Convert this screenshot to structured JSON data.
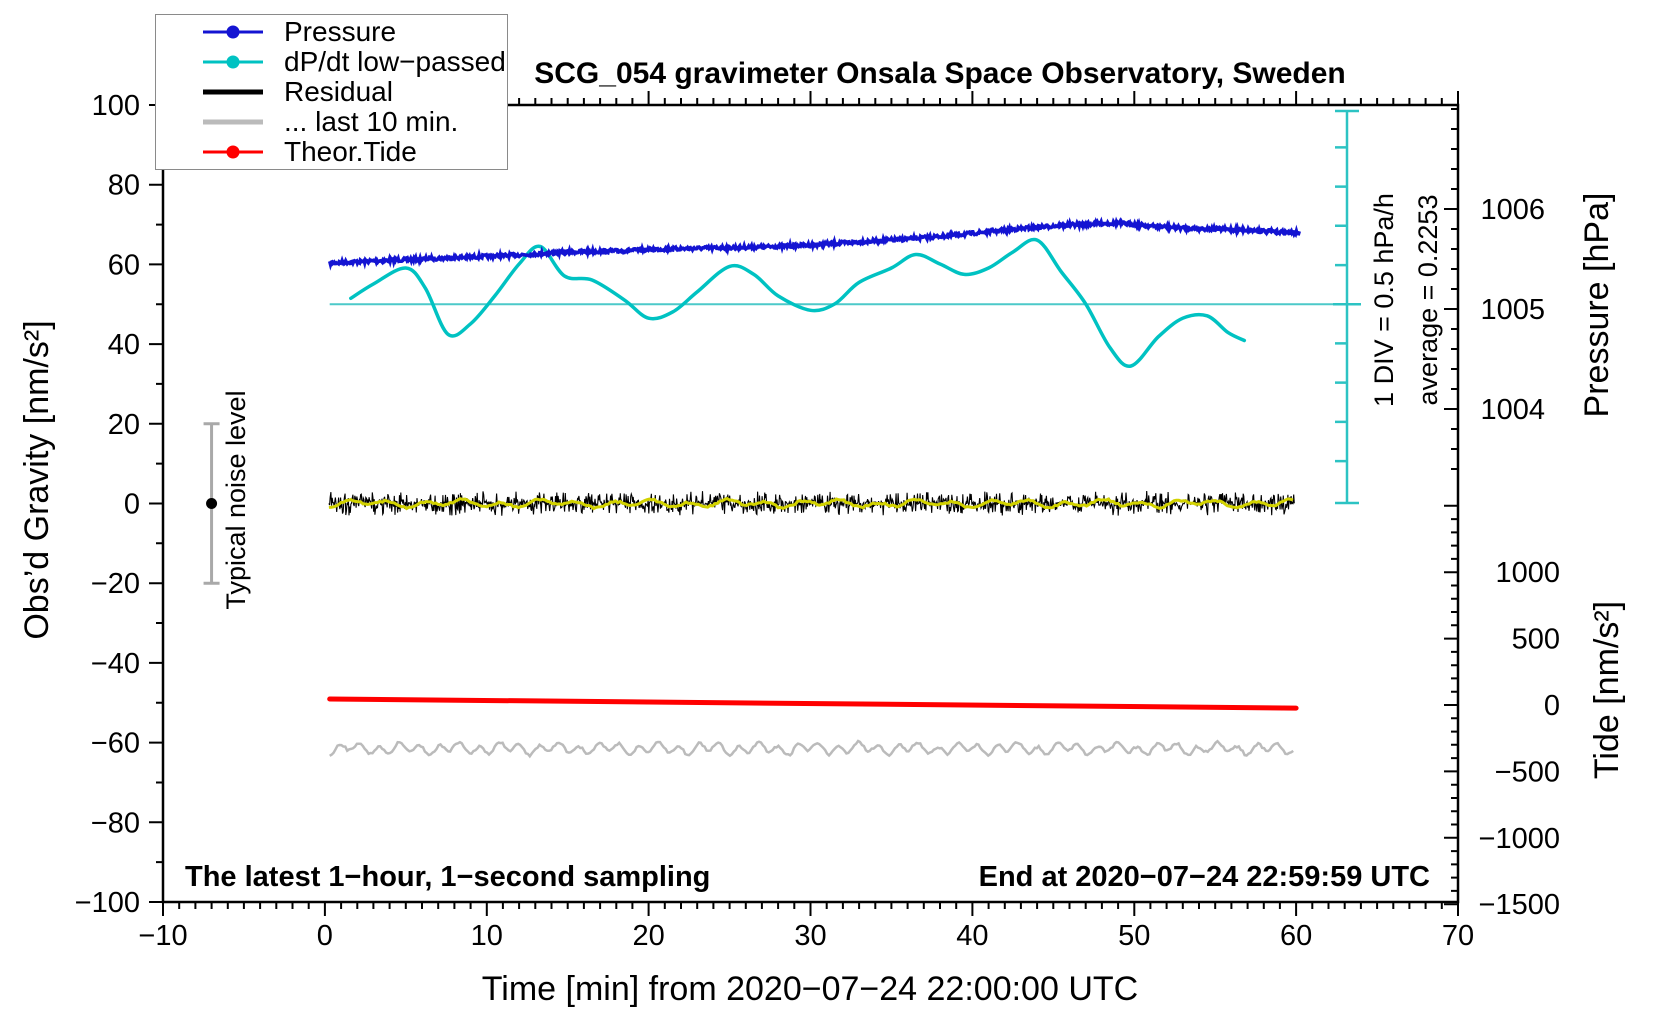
{
  "title": "SCG_054 gravimeter Onsala Space Observatory, Sweden",
  "axes_labels": {
    "left": "Obs’d Gravity [nm/s²]",
    "bottom": "Time [min] from 2020−07−24 22:00:00 UTC",
    "right_top": "Pressure [hPa]",
    "right_bottom": "Tide [nm/s²]"
  },
  "annotations": {
    "div_scale": "1 DIV = 0.5 hPa/h",
    "average": "average = 0.2253",
    "noise": "Typical noise level",
    "sampling": "The latest 1−hour, 1−second sampling",
    "end_time": "End at 2020−07−24 22:59:59 UTC"
  },
  "legend": {
    "items": [
      {
        "label": "Pressure",
        "color": "#1414d2",
        "thickness": 3,
        "marker": true
      },
      {
        "label": "dP/dt low−passed",
        "color": "#00c2c2",
        "thickness": 3,
        "marker": true
      },
      {
        "label": "Residual",
        "color": "#000000",
        "thickness": 5,
        "marker": false
      },
      {
        "label": "... last 10 min.",
        "color": "#bbbbbb",
        "thickness": 5,
        "marker": false
      },
      {
        "label": "Theor.Tide",
        "color": "#ff0000",
        "thickness": 3,
        "marker": true
      }
    ]
  },
  "chart_data": {
    "type": "line",
    "title": "SCG_054 gravimeter Onsala Space Observatory, Sweden",
    "x_axis": {
      "label": "Time [min] from 2020−07−24 22:00:00 UTC",
      "range": [
        -10,
        70
      ],
      "major_ticks": [
        -10,
        0,
        10,
        20,
        30,
        40,
        50,
        60,
        70
      ],
      "minor_step": 1
    },
    "y_left": {
      "label": "Obs’d Gravity [nm/s²]",
      "range": [
        -100,
        100
      ],
      "major_ticks": [
        -100,
        -80,
        -60,
        -40,
        -20,
        0,
        20,
        40,
        60,
        80,
        100
      ],
      "minor_step": 10
    },
    "y_right_pressure": {
      "label": "Pressure [hPa]",
      "major_ticks": [
        1004,
        1005,
        1006
      ],
      "minor_step": 0.2
    },
    "y_right_tide": {
      "label": "Tide [nm/s²]",
      "major_ticks": [
        1000,
        500,
        0,
        -500,
        -1000,
        -1500
      ],
      "minor_step": 100
    },
    "noise_bar": {
      "label": "Typical noise level",
      "x_time": -7,
      "center": 0,
      "half_range": 20
    },
    "dpdt_scalebar": {
      "div_value_hpa_per_h": 0.5,
      "average_hpa_per_h": 0.2253,
      "divисions_shown": 10
    },
    "series": [
      {
        "name": "Pressure",
        "unit": "hPa",
        "color": "#1414d2",
        "style": "noisy-thick",
        "points": [
          [
            0.3,
            1005.46
          ],
          [
            3,
            1005.48
          ],
          [
            6,
            1005.5
          ],
          [
            9,
            1005.52
          ],
          [
            12,
            1005.54
          ],
          [
            15,
            1005.57
          ],
          [
            18,
            1005.58
          ],
          [
            21,
            1005.6
          ],
          [
            24,
            1005.61
          ],
          [
            27,
            1005.62
          ],
          [
            30,
            1005.64
          ],
          [
            33,
            1005.67
          ],
          [
            36,
            1005.7
          ],
          [
            39,
            1005.74
          ],
          [
            42,
            1005.79
          ],
          [
            45,
            1005.83
          ],
          [
            47,
            1005.85
          ],
          [
            49,
            1005.86
          ],
          [
            51,
            1005.83
          ],
          [
            53,
            1005.81
          ],
          [
            55,
            1005.8
          ],
          [
            57,
            1005.79
          ],
          [
            59,
            1005.77
          ],
          [
            60.2,
            1005.76
          ]
        ]
      },
      {
        "name": "dP/dt low−passed",
        "unit": "hPa/h",
        "color": "#00c2c2",
        "style": "smooth",
        "average": 0.2253,
        "points": [
          [
            1.6,
            0.3
          ],
          [
            3,
            0.48
          ],
          [
            5,
            0.68
          ],
          [
            6.2,
            0.43
          ],
          [
            7.6,
            -0.15
          ],
          [
            9,
            -0.02
          ],
          [
            10.5,
            0.33
          ],
          [
            12,
            0.73
          ],
          [
            13.3,
            0.95
          ],
          [
            14.8,
            0.58
          ],
          [
            16.5,
            0.53
          ],
          [
            18.5,
            0.28
          ],
          [
            20,
            0.05
          ],
          [
            21.5,
            0.13
          ],
          [
            23,
            0.38
          ],
          [
            25,
            0.7
          ],
          [
            26.5,
            0.6
          ],
          [
            28,
            0.33
          ],
          [
            30,
            0.15
          ],
          [
            31.5,
            0.23
          ],
          [
            33,
            0.5
          ],
          [
            35,
            0.68
          ],
          [
            36.5,
            0.85
          ],
          [
            38,
            0.73
          ],
          [
            39.5,
            0.6
          ],
          [
            41,
            0.68
          ],
          [
            42.5,
            0.88
          ],
          [
            44,
            1.03
          ],
          [
            45.5,
            0.63
          ],
          [
            47,
            0.23
          ],
          [
            48.5,
            -0.32
          ],
          [
            49.8,
            -0.55
          ],
          [
            51.5,
            -0.18
          ],
          [
            53,
            0.05
          ],
          [
            54.5,
            0.08
          ],
          [
            55.8,
            -0.13
          ],
          [
            56.8,
            -0.23
          ]
        ]
      },
      {
        "name": "Residual",
        "unit": "nm/s²",
        "color": "#000000",
        "style": "noise-band",
        "mean": 0,
        "noise_peak": 5,
        "overlay_color": "#d2d200",
        "overlay_amplitude": 1.2,
        "t_range": [
          0.25,
          59.9
        ]
      },
      {
        "name": "... last 10 min.",
        "unit": "nm/s²",
        "color": "#bbbbbb",
        "style": "wiggle",
        "mean": -61.5,
        "amplitude": 2,
        "t_range": [
          0.3,
          59.9
        ]
      },
      {
        "name": "Theor.Tide",
        "unit": "nm/s² (tide axis)",
        "color": "#ff0000",
        "style": "straight",
        "points": [
          [
            0.3,
            45
          ],
          [
            60,
            -23
          ]
        ]
      }
    ]
  }
}
